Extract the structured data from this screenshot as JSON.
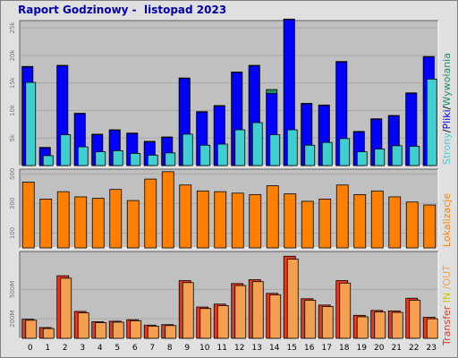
{
  "title": "Raport Godzinowy -  listopad 2023",
  "colors": {
    "strony": "#3fcfcf",
    "pliki": "#0000ff",
    "wywolania": "#218f5f",
    "lokalizacje": "#ff8000",
    "transfer_in": "#e83818",
    "transfer_out": "#f5a050",
    "panel_bg": "#c0c0c0"
  },
  "chart_data": [
    {
      "type": "bar",
      "name": "hits",
      "categories": [
        "0",
        "1",
        "2",
        "3",
        "4",
        "5",
        "6",
        "7",
        "8",
        "9",
        "10",
        "11",
        "12",
        "13",
        "14",
        "15",
        "16",
        "17",
        "18",
        "19",
        "20",
        "21",
        "22",
        "23"
      ],
      "ylim": [
        0,
        26000
      ],
      "yticks": [
        "5k",
        "10k",
        "15k",
        "20k",
        "25k"
      ],
      "ytick_values": [
        5000,
        10000,
        15000,
        20000,
        25000
      ],
      "side_label_parts": [
        {
          "text": "Strony",
          "color_key": "strony"
        },
        {
          "text": "/",
          "color_key": "none"
        },
        {
          "text": "Pliki",
          "color_key": "pliki"
        },
        {
          "text": "/",
          "color_key": "none"
        },
        {
          "text": "Wywołania",
          "color_key": "wywolania"
        }
      ],
      "series": [
        {
          "key": "wywolania",
          "values": [
            18000,
            3300,
            18200,
            9500,
            5700,
            6500,
            5900,
            4400,
            5200,
            15900,
            9800,
            10900,
            17000,
            18200,
            13800,
            26600,
            11300,
            11000,
            18900,
            6200,
            8500,
            9100,
            13200,
            19800
          ]
        },
        {
          "key": "pliki",
          "values": [
            17900,
            3200,
            18100,
            9400,
            5600,
            6400,
            5800,
            4300,
            5100,
            15800,
            9700,
            10800,
            16900,
            18100,
            13100,
            26500,
            11200,
            10900,
            18800,
            6100,
            8400,
            9000,
            13100,
            19700
          ]
        },
        {
          "key": "strony",
          "values": [
            15100,
            1800,
            5600,
            3400,
            2500,
            2700,
            2200,
            1900,
            2300,
            5700,
            3700,
            3900,
            6500,
            7800,
            5600,
            6500,
            3700,
            4200,
            4900,
            2500,
            3000,
            3600,
            3500,
            15700
          ]
        }
      ]
    },
    {
      "type": "bar",
      "name": "lokalizacje",
      "categories": [
        "0",
        "1",
        "2",
        "3",
        "4",
        "5",
        "6",
        "7",
        "8",
        "9",
        "10",
        "11",
        "12",
        "13",
        "14",
        "15",
        "16",
        "17",
        "18",
        "19",
        "20",
        "21",
        "22",
        "23"
      ],
      "ylim": [
        0,
        520
      ],
      "yticks": [
        "100",
        "300",
        "500"
      ],
      "ytick_values": [
        100,
        300,
        500
      ],
      "side_label_parts": [
        {
          "text": "Lokalizacje",
          "color_key": "lokalizacje"
        }
      ],
      "series": [
        {
          "key": "lokalizacje",
          "values": [
            445,
            330,
            380,
            345,
            335,
            395,
            320,
            465,
            515,
            425,
            385,
            380,
            370,
            360,
            420,
            365,
            315,
            330,
            425,
            360,
            385,
            345,
            310,
            290
          ]
        }
      ]
    },
    {
      "type": "bar",
      "name": "transfer",
      "categories": [
        "0",
        "1",
        "2",
        "3",
        "4",
        "5",
        "6",
        "7",
        "8",
        "9",
        "10",
        "11",
        "12",
        "13",
        "14",
        "15",
        "16",
        "17",
        "18",
        "19",
        "20",
        "21",
        "22",
        "23"
      ],
      "ylim": [
        0,
        870
      ],
      "yticks": [
        "200M",
        "500M"
      ],
      "ytick_values": [
        200,
        500
      ],
      "side_label_parts": [
        {
          "text": "Transfer",
          "color_key": "transfer_in"
        },
        {
          "text": " IN ",
          "color_key": "wywolania_light"
        },
        {
          "text": "/OUT",
          "color_key": "transfer_out"
        }
      ],
      "series": [
        {
          "key": "transfer_in",
          "values": [
            195,
            110,
            640,
            275,
            170,
            175,
            190,
            135,
            140,
            590,
            320,
            350,
            560,
            600,
            460,
            840,
            405,
            340,
            590,
            235,
            285,
            280,
            410,
            215
          ]
        },
        {
          "key": "transfer_out",
          "values": [
            185,
            100,
            615,
            260,
            160,
            165,
            180,
            125,
            130,
            570,
            305,
            335,
            540,
            580,
            445,
            810,
            390,
            325,
            565,
            220,
            270,
            265,
            390,
            200
          ]
        }
      ]
    }
  ]
}
